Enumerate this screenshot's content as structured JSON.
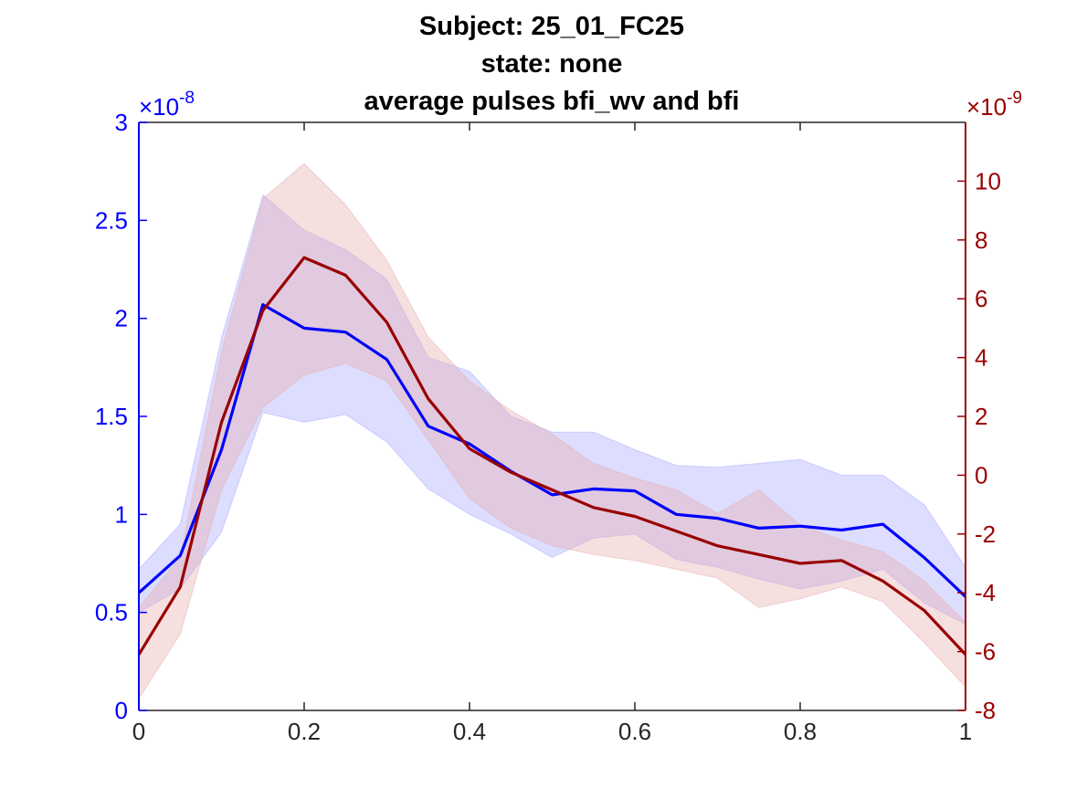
{
  "chart_data": {
    "type": "line",
    "title": [
      "Subject: 25_01_FC25",
      "state: none",
      "average pulses bfi_wv and bfi"
    ],
    "xlim": [
      0,
      1
    ],
    "x_ticks": [
      "0",
      "0.2",
      "0.4",
      "0.6",
      "0.8",
      "1"
    ],
    "x_tick_values": [
      0,
      0.2,
      0.4,
      0.6,
      0.8,
      1
    ],
    "x": [
      0,
      0.05,
      0.1,
      0.15,
      0.2,
      0.25,
      0.3,
      0.35,
      0.4,
      0.45,
      0.5,
      0.55,
      0.6,
      0.65,
      0.7,
      0.75,
      0.8,
      0.85,
      0.9,
      0.95,
      1.0
    ],
    "left_axis": {
      "color": "#0000ff",
      "ylim": [
        0,
        3
      ],
      "ticks": [
        "0",
        "0.5",
        "1",
        "1.5",
        "2",
        "2.5",
        "3"
      ],
      "tick_values": [
        0,
        0.5,
        1,
        1.5,
        2,
        2.5,
        3
      ],
      "multiplier_base": "×10",
      "multiplier_exp": "-8"
    },
    "right_axis": {
      "color": "#990000",
      "ylim": [
        -8,
        12
      ],
      "ticks": [
        "-8",
        "-6",
        "-4",
        "-2",
        "0",
        "2",
        "4",
        "6",
        "8",
        "10"
      ],
      "tick_values": [
        -8,
        -6,
        -4,
        -2,
        0,
        2,
        4,
        6,
        8,
        10
      ],
      "multiplier_base": "×10",
      "multiplier_exp": "-9"
    },
    "series": [
      {
        "axis": "left",
        "color": "#0000ff",
        "band_color": "#aaaaff",
        "values": [
          0.6,
          0.79,
          1.33,
          2.07,
          1.95,
          1.93,
          1.79,
          1.45,
          1.36,
          1.22,
          1.1,
          1.13,
          1.12,
          1.0,
          0.98,
          0.93,
          0.94,
          0.92,
          0.95,
          0.78,
          0.58
        ],
        "upper": [
          0.72,
          0.95,
          1.9,
          2.63,
          2.45,
          2.35,
          2.2,
          1.8,
          1.73,
          1.5,
          1.42,
          1.42,
          1.33,
          1.25,
          1.24,
          1.26,
          1.28,
          1.2,
          1.2,
          1.05,
          0.73
        ],
        "lower": [
          0.5,
          0.62,
          0.91,
          1.52,
          1.47,
          1.51,
          1.37,
          1.13,
          1.0,
          0.9,
          0.78,
          0.88,
          0.9,
          0.77,
          0.73,
          0.67,
          0.62,
          0.66,
          0.72,
          0.55,
          0.44
        ]
      },
      {
        "axis": "right",
        "color": "#990000",
        "band_color": "#e8b0b0",
        "values": [
          -6.1,
          -3.8,
          1.8,
          5.6,
          7.4,
          6.8,
          5.2,
          2.6,
          0.9,
          0.1,
          -0.5,
          -1.1,
          -1.4,
          -1.9,
          -2.4,
          -2.7,
          -3.0,
          -2.9,
          -3.6,
          -4.6,
          -6.1
        ],
        "upper": [
          -4.5,
          -2.8,
          4.2,
          9.4,
          10.6,
          9.2,
          7.3,
          4.7,
          3.2,
          2.2,
          1.4,
          0.4,
          -0.1,
          -0.5,
          -1.3,
          -0.5,
          -1.7,
          -2.2,
          -2.6,
          -3.6,
          -5.0
        ],
        "lower": [
          -7.6,
          -5.4,
          -0.5,
          2.3,
          3.4,
          3.8,
          3.2,
          1.2,
          -0.8,
          -1.8,
          -2.4,
          -2.7,
          -2.9,
          -3.2,
          -3.5,
          -4.5,
          -4.2,
          -3.8,
          -4.3,
          -5.7,
          -7.2
        ]
      }
    ]
  }
}
